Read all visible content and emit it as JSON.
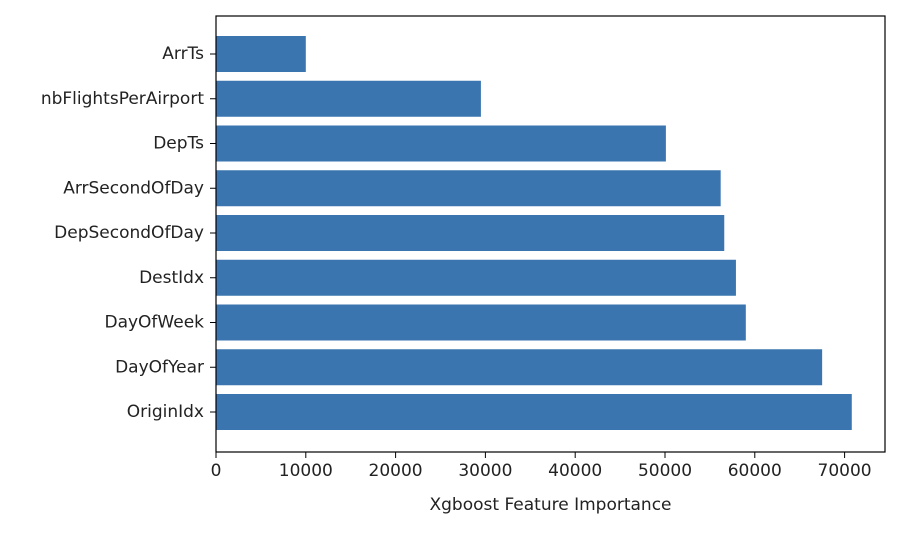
{
  "chart_data": {
    "type": "bar",
    "orientation": "horizontal",
    "categories": [
      "ArrTs",
      "nbFlightsPerAirport",
      "DepTs",
      "ArrSecondOfDay",
      "DepSecondOfDay",
      "DestIdx",
      "DayOfWeek",
      "DayOfYear",
      "OriginIdx"
    ],
    "values": [
      10000,
      29500,
      50100,
      56200,
      56600,
      57900,
      59000,
      67500,
      70800
    ],
    "xlabel": "Xgboost Feature Importance",
    "ylabel": "",
    "xlim": [
      0,
      74500
    ],
    "xticks": [
      0,
      10000,
      20000,
      30000,
      40000,
      50000,
      60000,
      70000
    ],
    "xtick_labels": [
      "0",
      "10000",
      "20000",
      "30000",
      "40000",
      "50000",
      "60000",
      "70000"
    ],
    "bar_color": "#3a75af",
    "grid": false,
    "legend": "none"
  }
}
